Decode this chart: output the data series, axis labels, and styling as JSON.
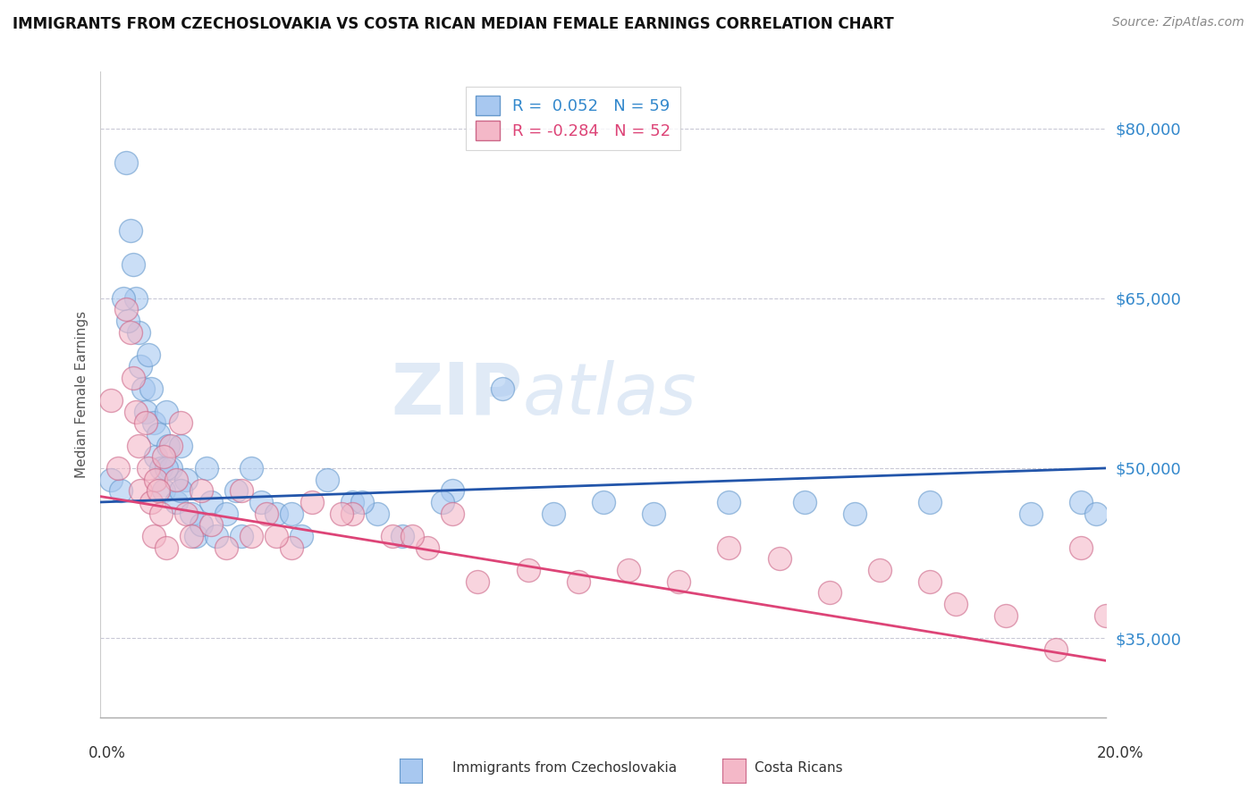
{
  "title": "IMMIGRANTS FROM CZECHOSLOVAKIA VS COSTA RICAN MEDIAN FEMALE EARNINGS CORRELATION CHART",
  "source": "Source: ZipAtlas.com",
  "ylabel": "Median Female Earnings",
  "yticks": [
    35000,
    50000,
    65000,
    80000
  ],
  "ytick_labels": [
    "$35,000",
    "$50,000",
    "$65,000",
    "$80,000"
  ],
  "xlim": [
    0.0,
    20.0
  ],
  "ylim": [
    28000,
    85000
  ],
  "blue_color": "#a8c8f0",
  "blue_edge_color": "#6699cc",
  "pink_color": "#f4b8c8",
  "pink_edge_color": "#cc6688",
  "blue_line_color": "#2255aa",
  "pink_line_color": "#dd4477",
  "watermark_color": "#dde8f5",
  "blue_line_y0": 47000,
  "blue_line_y1": 50000,
  "pink_line_y0": 47500,
  "pink_line_y1": 33000,
  "blue_x": [
    0.2,
    0.4,
    0.5,
    0.6,
    0.65,
    0.7,
    0.75,
    0.8,
    0.85,
    0.9,
    0.95,
    1.0,
    1.05,
    1.1,
    1.15,
    1.2,
    1.25,
    1.3,
    1.35,
    1.4,
    1.5,
    1.6,
    1.7,
    1.8,
    1.9,
    2.0,
    2.1,
    2.2,
    2.3,
    2.5,
    2.7,
    3.0,
    3.2,
    3.5,
    4.0,
    4.5,
    5.0,
    5.5,
    6.0,
    7.0,
    8.0,
    9.0,
    10.0,
    11.0,
    12.5,
    14.0,
    15.0,
    16.5,
    18.5,
    19.5,
    19.8,
    5.2,
    6.8,
    3.8,
    2.8,
    1.6,
    1.3,
    0.55,
    0.45
  ],
  "blue_y": [
    49000,
    48000,
    77000,
    71000,
    68000,
    65000,
    62000,
    59000,
    57000,
    55000,
    60000,
    57000,
    54000,
    51000,
    53000,
    50000,
    48000,
    55000,
    52000,
    50000,
    47000,
    52000,
    49000,
    46000,
    44000,
    45000,
    50000,
    47000,
    44000,
    46000,
    48000,
    50000,
    47000,
    46000,
    44000,
    49000,
    47000,
    46000,
    44000,
    48000,
    57000,
    46000,
    47000,
    46000,
    47000,
    47000,
    46000,
    47000,
    46000,
    47000,
    46000,
    47000,
    47000,
    46000,
    44000,
    48000,
    50000,
    63000,
    65000
  ],
  "pink_x": [
    0.2,
    0.35,
    0.5,
    0.6,
    0.65,
    0.7,
    0.75,
    0.8,
    0.9,
    0.95,
    1.0,
    1.05,
    1.1,
    1.2,
    1.3,
    1.4,
    1.5,
    1.6,
    1.7,
    1.8,
    2.0,
    2.2,
    2.5,
    2.8,
    3.0,
    3.3,
    3.8,
    4.2,
    5.0,
    5.8,
    6.5,
    7.0,
    7.5,
    8.5,
    9.5,
    10.5,
    11.5,
    12.5,
    13.5,
    14.5,
    15.5,
    16.5,
    17.0,
    18.0,
    19.0,
    19.5,
    20.0,
    3.5,
    4.8,
    6.2,
    1.25,
    1.15
  ],
  "pink_y": [
    56000,
    50000,
    64000,
    62000,
    58000,
    55000,
    52000,
    48000,
    54000,
    50000,
    47000,
    44000,
    49000,
    46000,
    43000,
    52000,
    49000,
    54000,
    46000,
    44000,
    48000,
    45000,
    43000,
    48000,
    44000,
    46000,
    43000,
    47000,
    46000,
    44000,
    43000,
    46000,
    40000,
    41000,
    40000,
    41000,
    40000,
    43000,
    42000,
    39000,
    41000,
    40000,
    38000,
    37000,
    34000,
    43000,
    37000,
    44000,
    46000,
    44000,
    51000,
    48000
  ]
}
